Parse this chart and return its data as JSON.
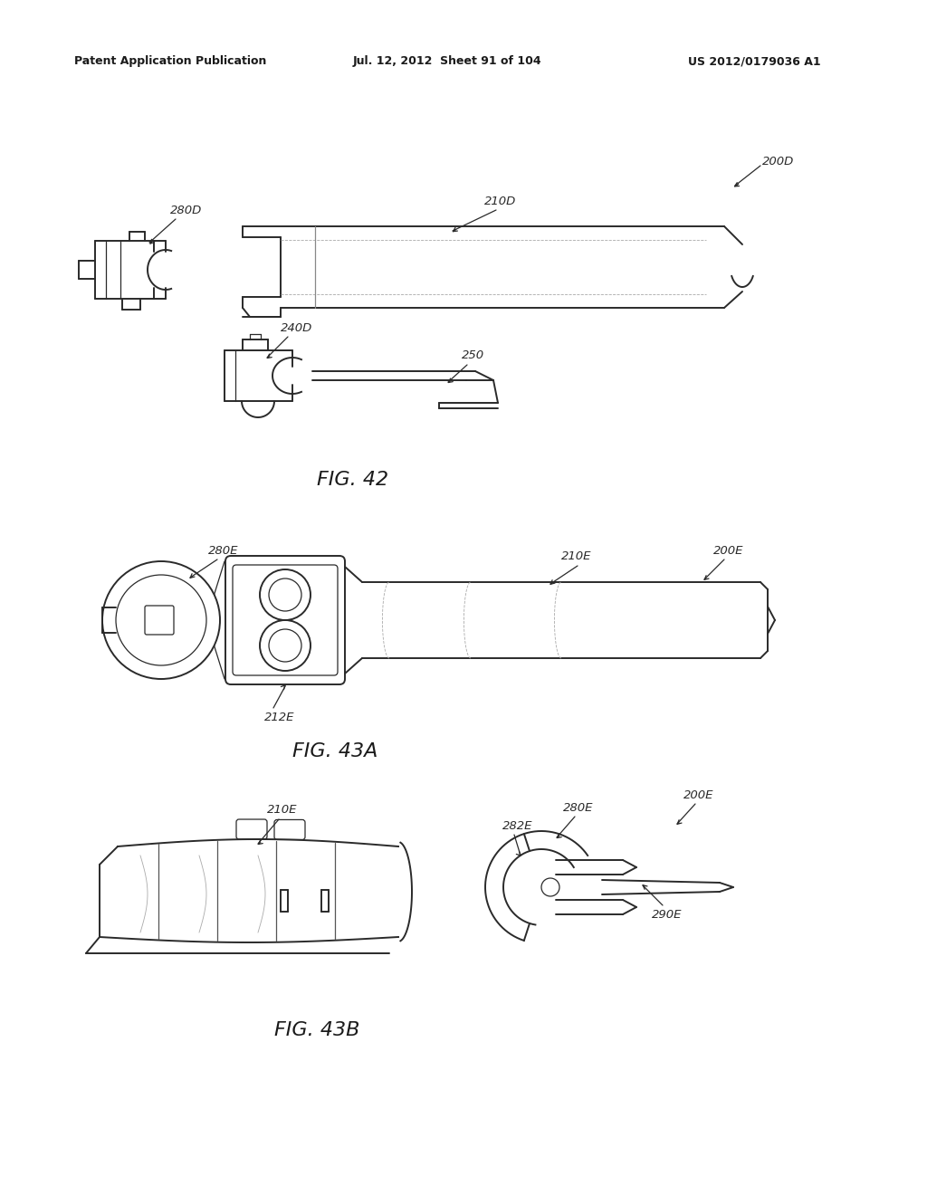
{
  "bg_color": "#ffffff",
  "text_color": "#1a1a1a",
  "line_color": "#2a2a2a",
  "header_left": "Patent Application Publication",
  "header_center": "Jul. 12, 2012  Sheet 91 of 104",
  "header_right": "US 2012/0179036 A1",
  "fig42_label": "FIG. 42",
  "fig43a_label": "FIG. 43A",
  "fig43b_label": "FIG. 43B"
}
